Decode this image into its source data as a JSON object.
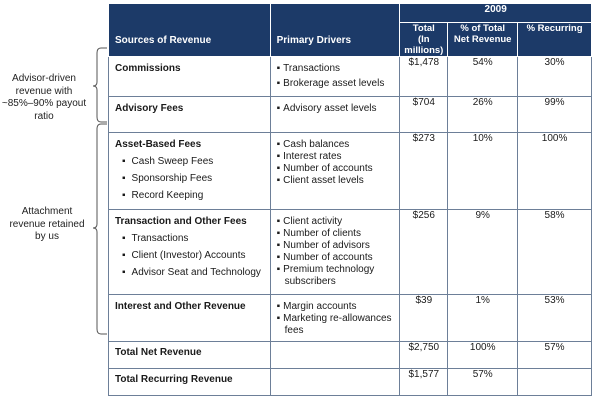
{
  "annotations": {
    "advisor_driven": "Advisor-driven revenue with ~85%–90% payout ratio",
    "attachment": "Attachment revenue retained by us"
  },
  "header": {
    "year": "2009",
    "col_sources": "Sources of Revenue",
    "col_drivers": "Primary Drivers",
    "col_total_line1": "Total",
    "col_total_line2": "(In millions)",
    "col_pct_net_line1": "% of Total",
    "col_pct_net_line2": "Net Revenue",
    "col_pct_recurring": "% Recurring"
  },
  "rows": [
    {
      "source": "Commissions",
      "subitems": [],
      "drivers": [
        "Transactions",
        "Brokerage asset levels"
      ],
      "total": "$1,478",
      "pct_net": "54%",
      "pct_recurring": "30%"
    },
    {
      "source": "Advisory Fees",
      "subitems": [],
      "drivers": [
        "Advisory asset levels"
      ],
      "total": "$704",
      "pct_net": "26%",
      "pct_recurring": "99%"
    },
    {
      "source": "Asset-Based Fees",
      "subitems": [
        "Cash Sweep Fees",
        "Sponsorship Fees",
        "Record Keeping"
      ],
      "drivers": [
        "Cash balances",
        "Interest rates",
        "Number of accounts",
        "Client asset levels"
      ],
      "total": "$273",
      "pct_net": "10%",
      "pct_recurring": "100%"
    },
    {
      "source": "Transaction and Other Fees",
      "subitems": [
        "Transactions",
        "Client (Investor) Accounts",
        "Advisor Seat and Technology"
      ],
      "drivers": [
        "Client activity",
        "Number of clients",
        "Number of advisors",
        "Number of accounts",
        "Premium technology subscribers"
      ],
      "total": "$256",
      "pct_net": "9%",
      "pct_recurring": "58%"
    },
    {
      "source": "Interest and Other Revenue",
      "subitems": [],
      "drivers": [
        "Margin accounts",
        "Marketing re-allowances fees"
      ],
      "total": "$39",
      "pct_net": "1%",
      "pct_recurring": "53%"
    }
  ],
  "totals": [
    {
      "label": "Total Net Revenue",
      "total": "$2,750",
      "pct_net": "100%",
      "pct_recurring": "57%"
    },
    {
      "label": "Total Recurring Revenue",
      "total": "$1,577",
      "pct_net": "57%",
      "pct_recurring": ""
    }
  ]
}
